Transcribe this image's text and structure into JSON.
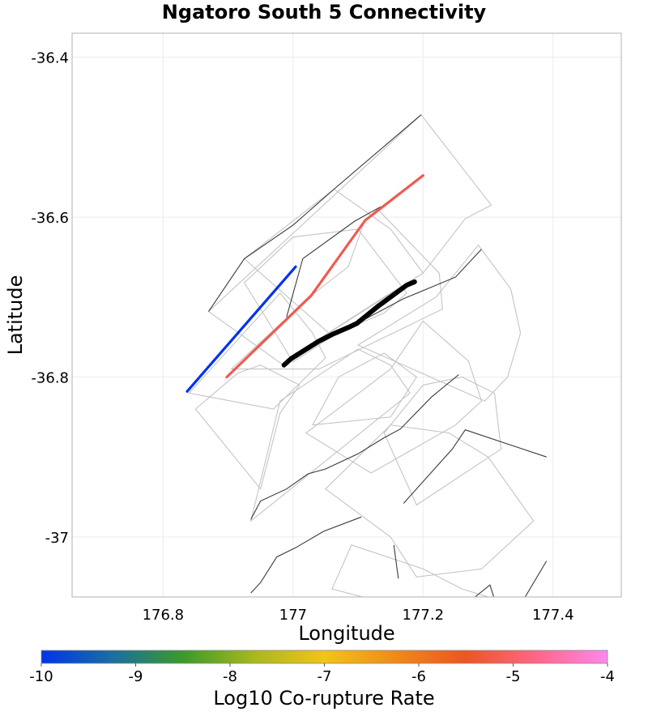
{
  "chart_data": {
    "type": "map",
    "title": "Ngatoro South 5 Connectivity",
    "xlabel": "Longitude",
    "ylabel": "Latitude",
    "xlim": [
      176.66,
      177.505
    ],
    "ylim": [
      -37.075,
      -36.37
    ],
    "x_ticks": [
      176.8,
      177.0,
      177.2,
      177.4
    ],
    "x_tick_labels": [
      "176.8",
      "177",
      "177.2",
      "177.4"
    ],
    "y_ticks": [
      -36.4,
      -36.6,
      -36.8,
      -37.0
    ],
    "y_tick_labels": [
      "-36.4",
      "-36.6",
      "-36.8",
      "-37"
    ],
    "grid": true,
    "colorbar": {
      "label": "Log10 Co-rupture Rate",
      "min": -10,
      "max": -4,
      "ticks": [
        -10,
        -9,
        -8,
        -7,
        -6,
        -5,
        -4
      ],
      "tick_labels": [
        "-10",
        "-9",
        "-8",
        "-7",
        "-6",
        "-5",
        "-4"
      ],
      "colors": [
        "#0033ee",
        "#1a6fa0",
        "#3a9a2a",
        "#a8b81c",
        "#f2c419",
        "#f08a17",
        "#ee5522",
        "#ff6688",
        "#ff88ee"
      ]
    },
    "target_fault": {
      "name": "Ngatoro South 5",
      "color": "#000000",
      "trace": [
        [
          176.986,
          -36.785
        ],
        [
          176.997,
          -36.777
        ],
        [
          177.04,
          -36.755
        ],
        [
          177.062,
          -36.746
        ],
        [
          177.085,
          -36.738
        ],
        [
          177.098,
          -36.733
        ],
        [
          177.13,
          -36.712
        ],
        [
          177.175,
          -36.685
        ],
        [
          177.187,
          -36.681
        ]
      ]
    },
    "rupture_faults": [
      {
        "log10_rate": -10,
        "color": "#0033ee",
        "trace": [
          [
            176.837,
            -36.818
          ],
          [
            177.004,
            -36.662
          ]
        ]
      },
      {
        "log10_rate": -5,
        "color": "#ee5b4f",
        "trace": [
          [
            176.898,
            -36.8
          ],
          [
            177.028,
            -36.698
          ],
          [
            177.111,
            -36.604
          ],
          [
            177.2,
            -36.548
          ]
        ]
      }
    ],
    "fault_traces": [
      [
        [
          176.87,
          -36.718
        ],
        [
          176.925,
          -36.652
        ],
        [
          177.0,
          -36.61
        ],
        [
          177.063,
          -36.565
        ],
        [
          177.197,
          -36.472
        ]
      ],
      [
        [
          176.99,
          -36.725
        ],
        [
          177.015,
          -36.652
        ],
        [
          177.095,
          -36.605
        ],
        [
          177.135,
          -36.587
        ]
      ],
      [
        [
          176.985,
          -36.785
        ],
        [
          177.05,
          -36.748
        ],
        [
          177.11,
          -36.728
        ],
        [
          177.17,
          -36.702
        ],
        [
          177.25,
          -36.675
        ],
        [
          177.29,
          -36.64
        ]
      ],
      [
        [
          177.17,
          -36.958
        ],
        [
          177.245,
          -36.89
        ],
        [
          177.265,
          -36.866
        ],
        [
          177.39,
          -36.9
        ]
      ],
      [
        [
          176.935,
          -36.978
        ],
        [
          176.95,
          -36.955
        ],
        [
          176.99,
          -36.94
        ],
        [
          177.023,
          -36.921
        ],
        [
          177.05,
          -36.915
        ],
        [
          177.1,
          -36.896
        ],
        [
          177.14,
          -36.876
        ],
        [
          177.165,
          -36.865
        ],
        [
          177.213,
          -36.825
        ],
        [
          177.255,
          -36.797
        ]
      ],
      [
        [
          176.935,
          -37.07
        ],
        [
          176.95,
          -37.057
        ],
        [
          176.975,
          -37.025
        ],
        [
          177.005,
          -37.013
        ],
        [
          177.047,
          -36.993
        ],
        [
          177.105,
          -36.975
        ]
      ],
      [
        [
          177.28,
          -37.075
        ],
        [
          177.303,
          -37.06
        ],
        [
          177.31,
          -37.078
        ]
      ],
      [
        [
          177.355,
          -37.078
        ],
        [
          177.39,
          -37.03
        ]
      ],
      [
        [
          177.162,
          -37.052
        ],
        [
          177.155,
          -37.01
        ]
      ]
    ],
    "fault_polygons": [
      [
        [
          176.87,
          -36.718
        ],
        [
          177.197,
          -36.472
        ],
        [
          177.305,
          -36.585
        ],
        [
          177.265,
          -36.602
        ],
        [
          177.2,
          -36.67
        ],
        [
          177.14,
          -36.7
        ],
        [
          177.05,
          -36.747
        ],
        [
          176.985,
          -36.785
        ]
      ],
      [
        [
          176.925,
          -36.652
        ],
        [
          177.063,
          -36.565
        ],
        [
          177.15,
          -36.615
        ],
        [
          177.2,
          -36.67
        ],
        [
          177.055,
          -36.745
        ]
      ],
      [
        [
          176.925,
          -36.682
        ],
        [
          177.0,
          -36.625
        ],
        [
          177.1,
          -36.615
        ],
        [
          177.175,
          -36.695
        ],
        [
          177.14,
          -36.72
        ],
        [
          177.07,
          -36.744
        ],
        [
          177.0,
          -36.781
        ]
      ],
      [
        [
          176.905,
          -36.79
        ],
        [
          177.028,
          -36.698
        ],
        [
          177.085,
          -36.662
        ],
        [
          177.11,
          -36.605
        ],
        [
          177.13,
          -36.59
        ],
        [
          177.225,
          -36.67
        ],
        [
          177.23,
          -36.715
        ],
        [
          177.04,
          -36.79
        ]
      ],
      [
        [
          176.84,
          -36.82
        ],
        [
          176.98,
          -36.695
        ],
        [
          177.03,
          -36.745
        ],
        [
          177.05,
          -36.776
        ],
        [
          176.97,
          -36.84
        ]
      ],
      [
        [
          176.85,
          -36.84
        ],
        [
          176.915,
          -36.795
        ],
        [
          176.95,
          -36.785
        ],
        [
          177.01,
          -36.81
        ],
        [
          176.98,
          -36.845
        ],
        [
          176.95,
          -36.94
        ]
      ],
      [
        [
          176.935,
          -36.98
        ],
        [
          176.98,
          -36.83
        ],
        [
          177.1,
          -36.765
        ],
        [
          177.15,
          -36.785
        ],
        [
          177.18,
          -36.82
        ],
        [
          177.05,
          -36.905
        ]
      ],
      [
        [
          177.03,
          -36.86
        ],
        [
          177.07,
          -36.8
        ],
        [
          177.14,
          -36.77
        ],
        [
          177.19,
          -36.8
        ],
        [
          177.15,
          -36.85
        ]
      ],
      [
        [
          177.02,
          -36.87
        ],
        [
          177.15,
          -36.79
        ],
        [
          177.2,
          -36.73
        ],
        [
          177.27,
          -36.78
        ],
        [
          177.29,
          -36.83
        ],
        [
          177.25,
          -36.86
        ],
        [
          177.12,
          -36.92
        ]
      ],
      [
        [
          177.1,
          -36.76
        ],
        [
          177.22,
          -36.7
        ],
        [
          177.285,
          -36.635
        ],
        [
          177.335,
          -36.69
        ],
        [
          177.35,
          -36.745
        ],
        [
          177.33,
          -36.8
        ],
        [
          177.295,
          -36.83
        ]
      ],
      [
        [
          177.14,
          -36.87
        ],
        [
          177.2,
          -36.81
        ],
        [
          177.26,
          -36.8
        ],
        [
          177.31,
          -36.82
        ],
        [
          177.32,
          -36.89
        ],
        [
          177.19,
          -36.96
        ]
      ],
      [
        [
          177.05,
          -36.94
        ],
        [
          177.15,
          -36.86
        ],
        [
          177.24,
          -36.87
        ],
        [
          177.3,
          -36.9
        ],
        [
          177.37,
          -36.98
        ],
        [
          177.29,
          -37.04
        ],
        [
          177.19,
          -37.05
        ],
        [
          177.15,
          -37.0
        ]
      ],
      [
        [
          177.09,
          -37.01
        ],
        [
          177.2,
          -37.04
        ],
        [
          177.26,
          -37.065
        ],
        [
          177.32,
          -37.08
        ],
        [
          177.13,
          -37.08
        ],
        [
          177.06,
          -37.065
        ]
      ]
    ]
  }
}
